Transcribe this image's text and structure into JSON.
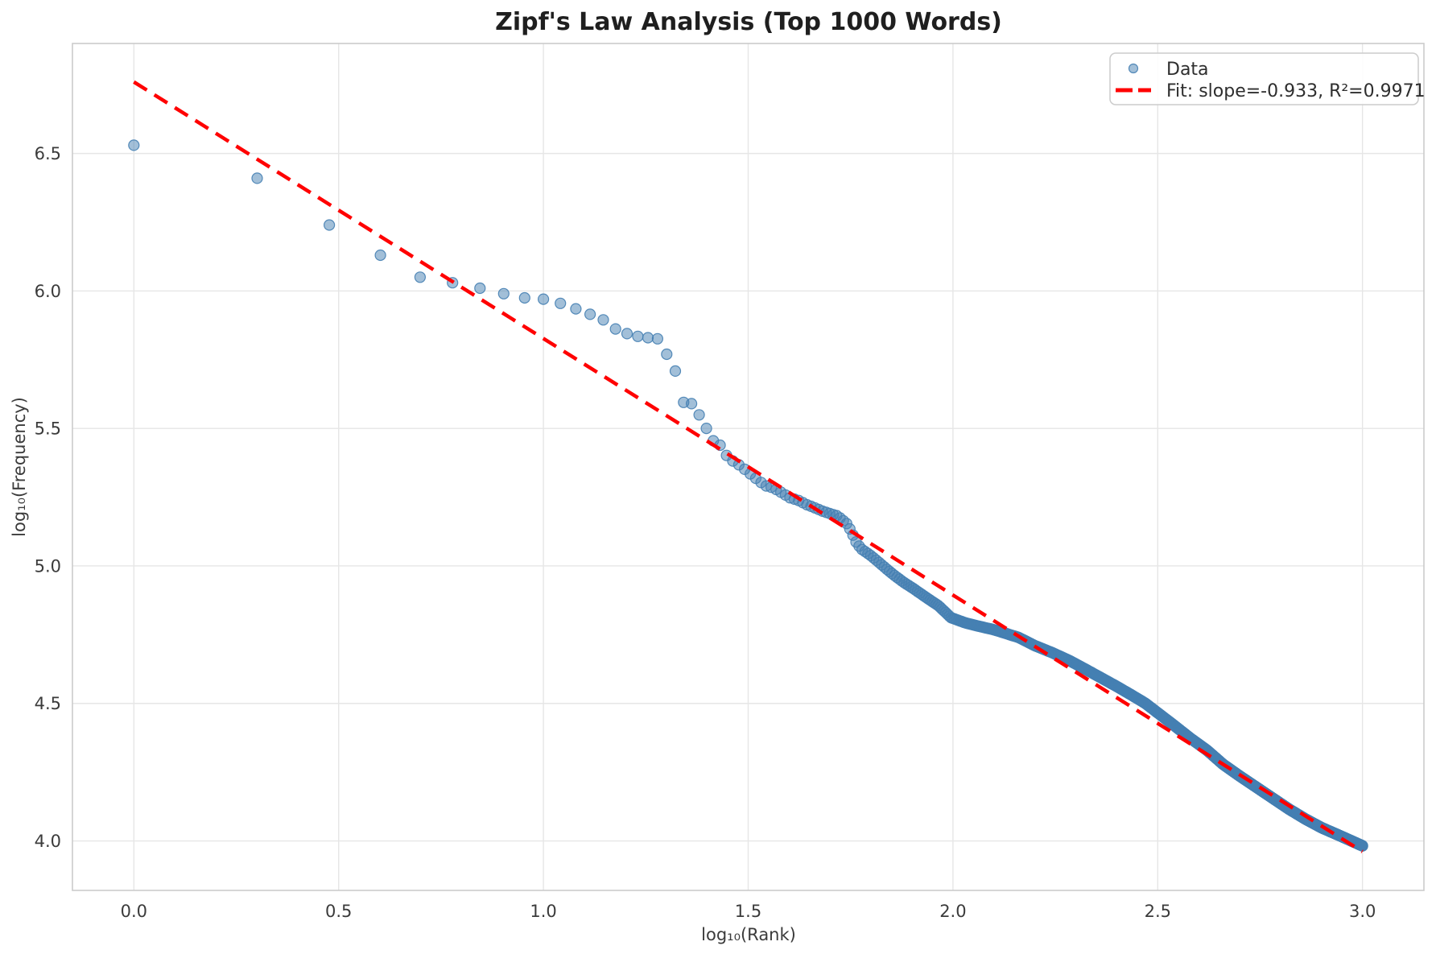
{
  "figure": {
    "title": "Zipf's Law Analysis (Top 1000 Words)"
  },
  "chart_data": {
    "type": "scatter",
    "title": "Zipf's Law Analysis (Top 1000 Words)",
    "xlabel": "log₁₀(Rank)",
    "ylabel": "log₁₀(Frequency)",
    "xlim": [
      -0.15,
      3.15
    ],
    "ylim": [
      3.82,
      6.9
    ],
    "x_ticks": [
      0.0,
      0.5,
      1.0,
      1.5,
      2.0,
      2.5,
      3.0
    ],
    "x_tick_labels": [
      "0.0",
      "0.5",
      "1.0",
      "1.5",
      "2.0",
      "2.5",
      "3.0"
    ],
    "y_ticks": [
      4.0,
      4.5,
      5.0,
      5.5,
      6.0,
      6.5
    ],
    "y_tick_labels": [
      "4.0",
      "4.5",
      "5.0",
      "5.5",
      "6.0",
      "6.5"
    ],
    "grid": true,
    "legend": {
      "position": "upper right",
      "entries": [
        {
          "label": "Data",
          "type": "marker",
          "color": "#4580B2"
        },
        {
          "label": "Fit: slope=-0.933, R²=0.9971",
          "type": "dashed-line",
          "color": "#FF0000"
        }
      ]
    },
    "series": [
      {
        "name": "Data",
        "kind": "scatter",
        "n_points": 1000,
        "x_rule": "x = log10(rank) for rank = 1..1000; y interpolated from curve_anchors",
        "marker_color": "#4580B2",
        "marker_fill_alpha": 0.5,
        "marker_edge_alpha": 0.9,
        "marker_radius": 6.5,
        "curve_anchors": [
          [
            0.0,
            6.53
          ],
          [
            0.301,
            6.41
          ],
          [
            0.477,
            6.24
          ],
          [
            0.602,
            6.13
          ],
          [
            0.699,
            6.05
          ],
          [
            0.778,
            6.03
          ],
          [
            0.845,
            6.01
          ],
          [
            0.903,
            5.99
          ],
          [
            0.954,
            5.975
          ],
          [
            1.0,
            5.97
          ],
          [
            1.041,
            5.955
          ],
          [
            1.079,
            5.935
          ],
          [
            1.114,
            5.915
          ],
          [
            1.146,
            5.895
          ],
          [
            1.176,
            5.862
          ],
          [
            1.204,
            5.845
          ],
          [
            1.23,
            5.835
          ],
          [
            1.255,
            5.83
          ],
          [
            1.279,
            5.826
          ],
          [
            1.301,
            5.77
          ],
          [
            1.322,
            5.71
          ],
          [
            1.342,
            5.595
          ],
          [
            1.362,
            5.59
          ],
          [
            1.38,
            5.55
          ],
          [
            1.398,
            5.5
          ],
          [
            1.415,
            5.455
          ],
          [
            1.431,
            5.44
          ],
          [
            1.447,
            5.402
          ],
          [
            1.462,
            5.382
          ],
          [
            1.477,
            5.368
          ],
          [
            1.491,
            5.352
          ],
          [
            1.505,
            5.335
          ],
          [
            1.519,
            5.318
          ],
          [
            1.53,
            5.305
          ],
          [
            1.545,
            5.29
          ],
          [
            1.56,
            5.285
          ],
          [
            1.58,
            5.268
          ],
          [
            1.602,
            5.248
          ],
          [
            1.623,
            5.238
          ],
          [
            1.644,
            5.222
          ],
          [
            1.66,
            5.213
          ],
          [
            1.68,
            5.2
          ],
          [
            1.7,
            5.19
          ],
          [
            1.718,
            5.182
          ],
          [
            1.74,
            5.155
          ],
          [
            1.752,
            5.125
          ],
          [
            1.763,
            5.088
          ],
          [
            1.776,
            5.062
          ],
          [
            1.799,
            5.038
          ],
          [
            1.82,
            5.012
          ],
          [
            1.84,
            4.986
          ],
          [
            1.86,
            4.962
          ],
          [
            1.88,
            4.94
          ],
          [
            1.906,
            4.915
          ],
          [
            1.935,
            4.885
          ],
          [
            1.965,
            4.855
          ],
          [
            1.995,
            4.812
          ],
          [
            2.03,
            4.793
          ],
          [
            2.065,
            4.78
          ],
          [
            2.1,
            4.768
          ],
          [
            2.13,
            4.754
          ],
          [
            2.16,
            4.74
          ],
          [
            2.2,
            4.71
          ],
          [
            2.24,
            4.686
          ],
          [
            2.284,
            4.656
          ],
          [
            2.324,
            4.624
          ],
          [
            2.363,
            4.592
          ],
          [
            2.402,
            4.56
          ],
          [
            2.44,
            4.527
          ],
          [
            2.47,
            4.5
          ],
          [
            2.505,
            4.46
          ],
          [
            2.54,
            4.42
          ],
          [
            2.58,
            4.373
          ],
          [
            2.62,
            4.33
          ],
          [
            2.66,
            4.278
          ],
          [
            2.7,
            4.236
          ],
          [
            2.74,
            4.196
          ],
          [
            2.78,
            4.156
          ],
          [
            2.82,
            4.116
          ],
          [
            2.86,
            4.08
          ],
          [
            2.9,
            4.048
          ],
          [
            2.94,
            4.022
          ],
          [
            2.97,
            4.002
          ],
          [
            3.0,
            3.982
          ]
        ]
      },
      {
        "name": "Fit",
        "kind": "line",
        "slope": -0.933,
        "intercept": 6.76,
        "r_squared": 0.9971,
        "x_start": 0.0,
        "x_end": 3.0,
        "color": "#FF0000",
        "dash": [
          19,
          11
        ],
        "width": 4.5
      }
    ],
    "colors": {
      "background": "#FFFFFF",
      "grid": "#E6E6E6",
      "spine": "#CBCBCB",
      "tick_text": "#3B3B3B",
      "title_text": "#1F1F1F",
      "legend_border": "#CCCCCC",
      "legend_fill": "#FFFFFF"
    }
  }
}
